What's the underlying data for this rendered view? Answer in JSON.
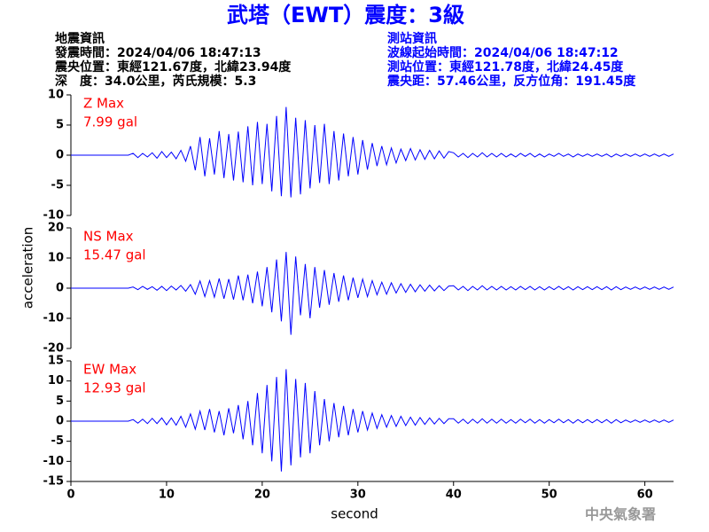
{
  "header": {
    "title": "武塔（EWT）震度：3級",
    "left": [
      "地震資訊",
      "發震時間：2024/04/06 18:47:13",
      "震央位置：東經121.67度，北緯23.94度",
      "深　度：34.0公里，芮氏規模：5.3"
    ],
    "right": [
      "測站資訊",
      "波線起始時間：2024/04/06 18:47:12",
      "測站位置：東經121.78度，北緯24.45度",
      "震央距：57.46公里，反方位角：191.45度"
    ]
  },
  "y_label": "acceleration",
  "footer": "中央氣象署",
  "chart_data": [
    {
      "type": "line",
      "label": "Z Max",
      "max_label": "7.99 gal",
      "color": "#0000ff",
      "xlim": [
        0,
        63
      ],
      "ylim": [
        -10,
        10
      ],
      "yticks": [
        -10,
        -5,
        0,
        5,
        10
      ],
      "x": [
        0,
        0.5,
        1,
        1.5,
        2,
        2.5,
        3,
        3.5,
        4,
        4.5,
        5,
        5.5,
        6,
        6.5,
        7,
        7.5,
        8,
        8.5,
        9,
        9.5,
        10,
        10.5,
        11,
        11.5,
        12,
        12.5,
        13,
        13.5,
        14,
        14.5,
        15,
        15.5,
        16,
        16.5,
        17,
        17.5,
        18,
        18.5,
        19,
        19.5,
        20,
        20.5,
        21,
        21.5,
        22,
        22.5,
        23,
        23.5,
        24,
        24.5,
        25,
        25.5,
        26,
        26.5,
        27,
        27.5,
        28,
        28.5,
        29,
        29.5,
        30,
        30.5,
        31,
        31.5,
        32,
        32.5,
        33,
        33.5,
        34,
        34.5,
        35,
        35.5,
        36,
        36.5,
        37,
        37.5,
        38,
        38.5,
        39,
        39.5,
        40,
        40.5,
        41,
        41.5,
        42,
        42.5,
        43,
        43.5,
        44,
        44.5,
        45,
        45.5,
        46,
        46.5,
        47,
        47.5,
        48,
        48.5,
        49,
        49.5,
        50,
        50.5,
        51,
        51.5,
        52,
        52.5,
        53,
        53.5,
        54,
        54.5,
        55,
        55.5,
        56,
        56.5,
        57,
        57.5,
        58,
        58.5,
        59,
        59.5,
        60,
        60.5,
        61,
        61.5,
        62,
        62.5,
        63
      ],
      "values": [
        0,
        0,
        0,
        0,
        0,
        0,
        0,
        0,
        0,
        0,
        0,
        0,
        0,
        0.3,
        -0.4,
        0.3,
        -0.3,
        0.4,
        -0.5,
        0.6,
        -0.4,
        0.5,
        -0.6,
        0.8,
        -1.0,
        1.5,
        -2.5,
        3.0,
        -3.5,
        2.8,
        -3.2,
        4.0,
        -3.8,
        3.5,
        -4.2,
        3.9,
        -4.5,
        4.8,
        -5.0,
        5.5,
        -4.8,
        5.2,
        -6.0,
        6.5,
        -6.8,
        7.99,
        -7.0,
        6.2,
        -6.5,
        5.8,
        -5.5,
        5.0,
        -4.6,
        5.2,
        -4.8,
        4.0,
        -4.2,
        3.6,
        -3.5,
        3.0,
        -3.2,
        2.5,
        -2.4,
        2.0,
        -1.8,
        1.5,
        -1.6,
        1.2,
        -1.3,
        1.0,
        -0.9,
        1.1,
        -0.8,
        0.9,
        -0.7,
        0.8,
        -0.6,
        0.7,
        -0.5,
        0.6,
        0.4,
        -0.3,
        0.3,
        -0.4,
        0.3,
        -0.3,
        0.4,
        -0.3,
        0.3,
        -0.3,
        0.3,
        -0.3,
        0.2,
        -0.3,
        0.3,
        -0.2,
        0.3,
        -0.3,
        0.2,
        -0.3,
        0.2,
        -0.2,
        0.3,
        -0.2,
        0.2,
        -0.3,
        0.2,
        -0.2,
        0.2,
        -0.2,
        0.2,
        -0.2,
        0.2,
        -0.3,
        0.2,
        -0.2,
        0.2,
        -0.2,
        0.2,
        -0.2,
        0.2,
        -0.2,
        0.2,
        -0.2,
        0.2,
        -0.2,
        0.2
      ]
    },
    {
      "type": "line",
      "label": "NS Max",
      "max_label": "15.47 gal",
      "color": "#0000ff",
      "xlim": [
        0,
        63
      ],
      "ylim": [
        -20,
        20
      ],
      "yticks": [
        -20,
        -10,
        0,
        10,
        20
      ],
      "x": [
        0,
        0.5,
        1,
        1.5,
        2,
        2.5,
        3,
        3.5,
        4,
        4.5,
        5,
        5.5,
        6,
        6.5,
        7,
        7.5,
        8,
        8.5,
        9,
        9.5,
        10,
        10.5,
        11,
        11.5,
        12,
        12.5,
        13,
        13.5,
        14,
        14.5,
        15,
        15.5,
        16,
        16.5,
        17,
        17.5,
        18,
        18.5,
        19,
        19.5,
        20,
        20.5,
        21,
        21.5,
        22,
        22.5,
        23,
        23.5,
        24,
        24.5,
        25,
        25.5,
        26,
        26.5,
        27,
        27.5,
        28,
        28.5,
        29,
        29.5,
        30,
        30.5,
        31,
        31.5,
        32,
        32.5,
        33,
        33.5,
        34,
        34.5,
        35,
        35.5,
        36,
        36.5,
        37,
        37.5,
        38,
        38.5,
        39,
        39.5,
        40,
        40.5,
        41,
        41.5,
        42,
        42.5,
        43,
        43.5,
        44,
        44.5,
        45,
        45.5,
        46,
        46.5,
        47,
        47.5,
        48,
        48.5,
        49,
        49.5,
        50,
        50.5,
        51,
        51.5,
        52,
        52.5,
        53,
        53.5,
        54,
        54.5,
        55,
        55.5,
        56,
        56.5,
        57,
        57.5,
        58,
        58.5,
        59,
        59.5,
        60,
        60.5,
        61,
        61.5,
        62,
        62.5,
        63
      ],
      "values": [
        0,
        0,
        0,
        0,
        0,
        0,
        0,
        0,
        0,
        0,
        0,
        0,
        0,
        0.4,
        -0.5,
        0.6,
        -0.4,
        0.5,
        -0.7,
        0.6,
        -0.8,
        0.7,
        -0.6,
        0.9,
        -1.0,
        1.2,
        -2.0,
        2.4,
        -2.8,
        2.5,
        -3.0,
        3.2,
        -3.5,
        3.0,
        -3.8,
        4.2,
        -4.0,
        4.5,
        -5.0,
        5.5,
        -6.0,
        7.0,
        -8.0,
        9.5,
        -11.0,
        12.0,
        -15.47,
        10.5,
        -9.0,
        8.0,
        -10.0,
        7.0,
        -6.5,
        6.0,
        -5.5,
        5.0,
        -4.5,
        4.2,
        -4.0,
        3.5,
        -3.2,
        3.0,
        -2.8,
        2.5,
        -2.2,
        2.0,
        -2.0,
        1.8,
        -1.6,
        1.5,
        -1.4,
        1.3,
        -1.2,
        1.1,
        -1.0,
        1.0,
        -0.9,
        0.8,
        -0.8,
        0.7,
        0.8,
        -0.6,
        0.6,
        -0.8,
        0.6,
        -0.6,
        0.8,
        -0.6,
        0.6,
        -0.6,
        0.6,
        -0.6,
        0.5,
        -0.6,
        0.6,
        -0.5,
        0.6,
        -0.6,
        0.5,
        -0.6,
        0.5,
        -0.5,
        0.6,
        -0.5,
        0.5,
        -0.6,
        0.5,
        -0.5,
        0.5,
        -0.5,
        0.5,
        -0.5,
        0.5,
        -0.6,
        0.5,
        -0.5,
        0.4,
        -0.4,
        0.4,
        -0.4,
        0.4,
        -0.4,
        0.4,
        -0.4,
        0.4,
        -0.4,
        0.4
      ]
    },
    {
      "type": "line",
      "label": "EW Max",
      "max_label": "12.93 gal",
      "color": "#0000ff",
      "xlim": [
        0,
        63
      ],
      "ylim": [
        -15,
        15
      ],
      "yticks": [
        -15,
        -10,
        -5,
        0,
        5,
        10,
        15
      ],
      "xticks": [
        0,
        10,
        20,
        30,
        40,
        50,
        60
      ],
      "x_label": "second",
      "x": [
        0,
        0.5,
        1,
        1.5,
        2,
        2.5,
        3,
        3.5,
        4,
        4.5,
        5,
        5.5,
        6,
        6.5,
        7,
        7.5,
        8,
        8.5,
        9,
        9.5,
        10,
        10.5,
        11,
        11.5,
        12,
        12.5,
        13,
        13.5,
        14,
        14.5,
        15,
        15.5,
        16,
        16.5,
        17,
        17.5,
        18,
        18.5,
        19,
        19.5,
        20,
        20.5,
        21,
        21.5,
        22,
        22.5,
        23,
        23.5,
        24,
        24.5,
        25,
        25.5,
        26,
        26.5,
        27,
        27.5,
        28,
        28.5,
        29,
        29.5,
        30,
        30.5,
        31,
        31.5,
        32,
        32.5,
        33,
        33.5,
        34,
        34.5,
        35,
        35.5,
        36,
        36.5,
        37,
        37.5,
        38,
        38.5,
        39,
        39.5,
        40,
        40.5,
        41,
        41.5,
        42,
        42.5,
        43,
        43.5,
        44,
        44.5,
        45,
        45.5,
        46,
        46.5,
        47,
        47.5,
        48,
        48.5,
        49,
        49.5,
        50,
        50.5,
        51,
        51.5,
        52,
        52.5,
        53,
        53.5,
        54,
        54.5,
        55,
        55.5,
        56,
        56.5,
        57,
        57.5,
        58,
        58.5,
        59,
        59.5,
        60,
        60.5,
        61,
        61.5,
        62,
        62.5,
        63
      ],
      "values": [
        0,
        0,
        0,
        0,
        0,
        0,
        0,
        0,
        0,
        0,
        0,
        0,
        0,
        0.4,
        -0.5,
        0.5,
        -0.6,
        0.7,
        -0.6,
        0.8,
        -0.9,
        0.8,
        -1.0,
        1.2,
        -1.5,
        1.8,
        -2.0,
        2.5,
        -2.2,
        3.0,
        -2.8,
        2.5,
        -3.5,
        3.2,
        -3.0,
        4.0,
        -4.5,
        5.0,
        -6.0,
        7.0,
        -8.0,
        9.0,
        -10.0,
        11.0,
        -12.5,
        12.93,
        -11.0,
        10.5,
        -9.0,
        9.5,
        -8.0,
        7.5,
        -6.0,
        5.5,
        -5.0,
        4.5,
        -4.0,
        3.8,
        -3.5,
        3.0,
        -2.8,
        2.5,
        -2.2,
        2.0,
        -1.8,
        1.6,
        -1.5,
        1.4,
        -1.3,
        1.2,
        -1.1,
        1.0,
        -1.0,
        0.9,
        -0.8,
        0.8,
        -0.7,
        0.7,
        -0.6,
        0.6,
        0.6,
        -0.5,
        0.5,
        -0.6,
        0.5,
        -0.5,
        0.6,
        -0.5,
        0.5,
        -0.5,
        0.5,
        -0.5,
        0.4,
        -0.5,
        0.5,
        -0.4,
        0.5,
        -0.5,
        0.4,
        -0.5,
        0.4,
        -0.4,
        0.5,
        -0.4,
        0.4,
        -0.5,
        0.4,
        -0.4,
        0.4,
        -0.4,
        0.4,
        -0.4,
        0.4,
        -0.5,
        0.4,
        -0.4,
        0.3,
        -0.3,
        0.3,
        -0.3,
        0.3,
        -0.3,
        0.3,
        -0.3,
        0.3,
        -0.3,
        0.3
      ]
    }
  ]
}
